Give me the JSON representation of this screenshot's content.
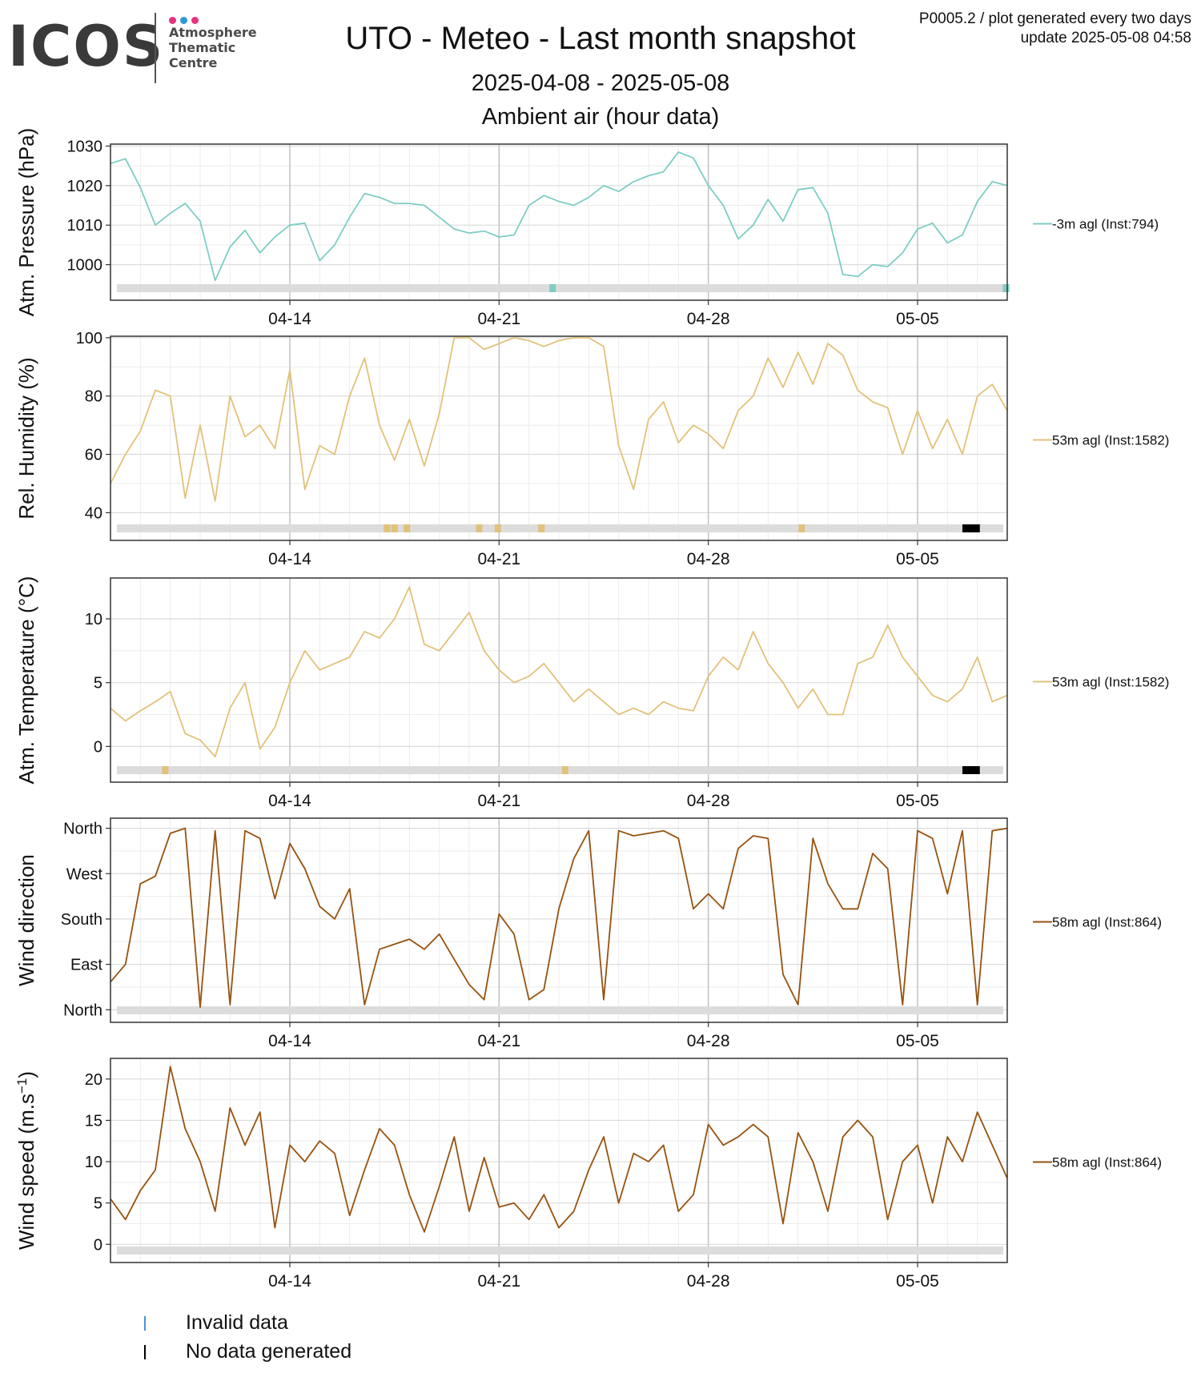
{
  "header": {
    "logo_text": "ICOS",
    "logo_sub": [
      "Atmosphere",
      "Thematic",
      "Centre"
    ],
    "logo_dot_colors": [
      "#e8327c",
      "#2d9ad6",
      "#e8327c"
    ],
    "title": "UTO - Meteo - Last month snapshot",
    "date_range": "2025-04-08 - 2025-05-08",
    "subtitle": "Ambient air (hour data)",
    "info_line1": "P0005.2 / plot generated every two days",
    "info_line2": "update  2025-05-08 04:58"
  },
  "footer_legend": [
    {
      "label": "Invalid data",
      "color": "#4a90d9"
    },
    {
      "label": "No data generated",
      "color": "#000000"
    }
  ],
  "chart_data": [
    {
      "type": "line",
      "ylabel": "Atm. Pressure (hPa)",
      "ylim": [
        991,
        1030.5
      ],
      "yticks": [
        1000,
        1010,
        1020,
        1030
      ],
      "ytick_labels": [
        "1000",
        "1010",
        "1020",
        "1030"
      ],
      "x_range": [
        "2025-04-08",
        "2025-05-08"
      ],
      "xticks": [
        "2025-04-14",
        "2025-04-21",
        "2025-04-28",
        "2025-05-05"
      ],
      "xtick_labels": [
        "04-14",
        "04-21",
        "04-28",
        "05-05"
      ],
      "grid": true,
      "series": [
        {
          "name": "-3m agl (Inst:794)",
          "color": "#7ecdc4",
          "x": [
            "2025-04-08",
            "2025-04-08T12:00",
            "2025-04-09",
            "2025-04-09T12:00",
            "2025-04-10",
            "2025-04-10T12:00",
            "2025-04-11",
            "2025-04-11T12:00",
            "2025-04-12",
            "2025-04-12T12:00",
            "2025-04-13",
            "2025-04-13T12:00",
            "2025-04-14",
            "2025-04-14T12:00",
            "2025-04-15",
            "2025-04-15T12:00",
            "2025-04-16",
            "2025-04-16T12:00",
            "2025-04-17",
            "2025-04-17T12:00",
            "2025-04-18",
            "2025-04-18T12:00",
            "2025-04-19",
            "2025-04-19T12:00",
            "2025-04-20",
            "2025-04-20T12:00",
            "2025-04-21",
            "2025-04-21T12:00",
            "2025-04-22",
            "2025-04-22T12:00",
            "2025-04-23",
            "2025-04-23T12:00",
            "2025-04-24",
            "2025-04-24T12:00",
            "2025-04-25",
            "2025-04-25T12:00",
            "2025-04-26",
            "2025-04-26T12:00",
            "2025-04-27",
            "2025-04-27T12:00",
            "2025-04-28",
            "2025-04-28T12:00",
            "2025-04-29",
            "2025-04-29T12:00",
            "2025-04-30",
            "2025-04-30T12:00",
            "2025-05-01",
            "2025-05-01T12:00",
            "2025-05-02",
            "2025-05-02T12:00",
            "2025-05-03",
            "2025-05-03T12:00",
            "2025-05-04",
            "2025-05-04T12:00",
            "2025-05-05",
            "2025-05-05T12:00",
            "2025-05-06",
            "2025-05-06T12:00",
            "2025-05-07",
            "2025-05-07T12:00",
            "2025-05-08"
          ],
          "values": [
            1025.6,
            1026.8,
            1019.5,
            1010.0,
            1013.0,
            1015.5,
            1011.0,
            996.0,
            1004.5,
            1008.7,
            1003.0,
            1007.0,
            1010.0,
            1010.5,
            1001.0,
            1005.0,
            1012.0,
            1018.0,
            1017.0,
            1015.5,
            1015.5,
            1015.0,
            1012.0,
            1009.0,
            1008.0,
            1008.5,
            1007.0,
            1007.5,
            1015.0,
            1017.5,
            1016.0,
            1015.0,
            1017.0,
            1020.0,
            1018.5,
            1021.0,
            1022.5,
            1023.5,
            1028.5,
            1027.0,
            1020.0,
            1015.0,
            1006.5,
            1010.0,
            1016.5,
            1011.0,
            1019.0,
            1019.5,
            1013.0,
            997.5,
            997.0,
            1000.0,
            999.5,
            1003.0,
            1009.0,
            1010.5,
            1005.5,
            1007.5,
            1016.0,
            1021.0,
            1020.0
          ]
        }
      ],
      "status_bar": {
        "invalid_color": "#7ecdc4",
        "invalid_at": [
          "2025-04-22T19:00",
          "2025-05-07T23:00"
        ]
      },
      "legend_position": "right"
    },
    {
      "type": "line",
      "ylabel": "Rel. Humidity (%)",
      "ylim": [
        30.5,
        100.5
      ],
      "yticks": [
        40,
        60,
        80,
        100
      ],
      "ytick_labels": [
        "40",
        "60",
        "80",
        "100"
      ],
      "x_range": [
        "2025-04-08",
        "2025-05-08"
      ],
      "xticks": [
        "2025-04-14",
        "2025-04-21",
        "2025-04-28",
        "2025-05-05"
      ],
      "xtick_labels": [
        "04-14",
        "04-21",
        "04-28",
        "05-05"
      ],
      "grid": true,
      "series": [
        {
          "name": "53m agl (Inst:1582)",
          "color": "#e0c27a",
          "x": [
            "2025-04-08",
            "2025-04-08T12:00",
            "2025-04-09",
            "2025-04-09T12:00",
            "2025-04-10",
            "2025-04-10T12:00",
            "2025-04-11",
            "2025-04-11T12:00",
            "2025-04-12",
            "2025-04-12T12:00",
            "2025-04-13",
            "2025-04-13T12:00",
            "2025-04-14",
            "2025-04-14T12:00",
            "2025-04-15",
            "2025-04-15T12:00",
            "2025-04-16",
            "2025-04-16T12:00",
            "2025-04-17",
            "2025-04-17T12:00",
            "2025-04-18",
            "2025-04-18T12:00",
            "2025-04-19",
            "2025-04-19T12:00",
            "2025-04-20",
            "2025-04-20T12:00",
            "2025-04-21",
            "2025-04-21T12:00",
            "2025-04-22",
            "2025-04-22T12:00",
            "2025-04-23",
            "2025-04-23T12:00",
            "2025-04-24",
            "2025-04-24T12:00",
            "2025-04-25",
            "2025-04-25T12:00",
            "2025-04-26",
            "2025-04-26T12:00",
            "2025-04-27",
            "2025-04-27T12:00",
            "2025-04-28",
            "2025-04-28T12:00",
            "2025-04-29",
            "2025-04-29T12:00",
            "2025-04-30",
            "2025-04-30T12:00",
            "2025-05-01",
            "2025-05-01T12:00",
            "2025-05-02",
            "2025-05-02T12:00",
            "2025-05-03",
            "2025-05-03T12:00",
            "2025-05-04",
            "2025-05-04T12:00",
            "2025-05-05",
            "2025-05-05T12:00",
            "2025-05-06",
            "2025-05-06T12:00",
            "2025-05-07",
            "2025-05-07T12:00",
            "2025-05-08"
          ],
          "values": [
            50,
            60,
            68,
            82,
            80,
            45,
            70,
            44,
            80,
            66,
            70,
            62,
            89,
            48,
            63,
            60,
            80,
            93,
            70,
            58,
            72,
            56,
            74,
            100,
            100,
            96,
            98,
            100,
            99,
            97,
            99,
            100,
            100,
            97,
            63,
            48,
            72,
            78,
            64,
            70,
            67,
            62,
            75,
            80,
            93,
            83,
            95,
            84,
            98,
            94,
            82,
            78,
            76,
            60,
            75,
            62,
            72,
            60,
            80,
            84,
            75
          ]
        }
      ],
      "status_bar": {
        "invalid_color": "#e0c27a",
        "invalid_at": [
          "2025-04-17T06:00",
          "2025-04-17T12:00",
          "2025-04-17T22:00",
          "2025-04-20T08:00",
          "2025-04-20T23:00",
          "2025-04-22T10:00",
          "2025-05-01T03:00"
        ],
        "nodata_color": "#000000",
        "nodata_ranges": [
          [
            "2025-05-06T12:00",
            "2025-05-07T02:00"
          ]
        ]
      },
      "legend_position": "right"
    },
    {
      "type": "line",
      "ylabel": "Atm. Temperature (°C)",
      "ylim": [
        -2.8,
        13.2
      ],
      "yticks": [
        0,
        5,
        10
      ],
      "ytick_labels": [
        "0",
        "5",
        "10"
      ],
      "x_range": [
        "2025-04-08",
        "2025-05-08"
      ],
      "xticks": [
        "2025-04-14",
        "2025-04-21",
        "2025-04-28",
        "2025-05-05"
      ],
      "xtick_labels": [
        "04-14",
        "04-21",
        "04-28",
        "05-05"
      ],
      "grid": true,
      "series": [
        {
          "name": "53m agl (Inst:1582)",
          "color": "#e0c27a",
          "x": [
            "2025-04-08",
            "2025-04-08T12:00",
            "2025-04-09",
            "2025-04-09T12:00",
            "2025-04-10",
            "2025-04-10T12:00",
            "2025-04-11",
            "2025-04-11T12:00",
            "2025-04-12",
            "2025-04-12T12:00",
            "2025-04-13",
            "2025-04-13T12:00",
            "2025-04-14",
            "2025-04-14T12:00",
            "2025-04-15",
            "2025-04-15T12:00",
            "2025-04-16",
            "2025-04-16T12:00",
            "2025-04-17",
            "2025-04-17T12:00",
            "2025-04-18",
            "2025-04-18T12:00",
            "2025-04-19",
            "2025-04-19T12:00",
            "2025-04-20",
            "2025-04-20T12:00",
            "2025-04-21",
            "2025-04-21T12:00",
            "2025-04-22",
            "2025-04-22T12:00",
            "2025-04-23",
            "2025-04-23T12:00",
            "2025-04-24",
            "2025-04-24T12:00",
            "2025-04-25",
            "2025-04-25T12:00",
            "2025-04-26",
            "2025-04-26T12:00",
            "2025-04-27",
            "2025-04-27T12:00",
            "2025-04-28",
            "2025-04-28T12:00",
            "2025-04-29",
            "2025-04-29T12:00",
            "2025-04-30",
            "2025-04-30T12:00",
            "2025-05-01",
            "2025-05-01T12:00",
            "2025-05-02",
            "2025-05-02T12:00",
            "2025-05-03",
            "2025-05-03T12:00",
            "2025-05-04",
            "2025-05-04T12:00",
            "2025-05-05",
            "2025-05-05T12:00",
            "2025-05-06",
            "2025-05-06T12:00",
            "2025-05-07",
            "2025-05-07T12:00",
            "2025-05-08"
          ],
          "values": [
            3.0,
            2.0,
            2.8,
            3.5,
            4.3,
            1.0,
            0.5,
            -0.8,
            3.0,
            5.0,
            -0.2,
            1.5,
            5.0,
            7.5,
            6.0,
            6.5,
            7.0,
            9.0,
            8.5,
            10.0,
            12.5,
            8.0,
            7.5,
            9.0,
            10.5,
            7.5,
            6.0,
            5.0,
            5.5,
            6.5,
            5.0,
            3.5,
            4.5,
            3.5,
            2.5,
            3.0,
            2.5,
            3.5,
            3.0,
            2.8,
            5.5,
            7.0,
            6.0,
            9.0,
            6.5,
            5.0,
            3.0,
            4.5,
            2.5,
            2.5,
            6.5,
            7.0,
            9.5,
            7.0,
            5.5,
            4.0,
            3.5,
            4.5,
            7.0,
            3.5,
            4.0
          ]
        }
      ],
      "status_bar": {
        "invalid_color": "#e0c27a",
        "invalid_at": [
          "2025-04-09T20:00",
          "2025-04-23T05:00"
        ],
        "nodata_color": "#000000",
        "nodata_ranges": [
          [
            "2025-05-06T12:00",
            "2025-05-07T02:00"
          ]
        ]
      },
      "legend_position": "right"
    },
    {
      "type": "line",
      "ylabel": "Wind direction",
      "ylim": [
        -25,
        380
      ],
      "yticks": [
        0,
        90,
        180,
        270,
        360
      ],
      "ytick_labels": [
        "North",
        "East",
        "South",
        "West",
        "North"
      ],
      "x_range": [
        "2025-04-08",
        "2025-05-08"
      ],
      "xticks": [
        "2025-04-14",
        "2025-04-21",
        "2025-04-28",
        "2025-05-05"
      ],
      "xtick_labels": [
        "04-14",
        "04-21",
        "04-28",
        "05-05"
      ],
      "grid": true,
      "series": [
        {
          "name": "58m agl (Inst:864)",
          "color": "#96520f",
          "x": [
            "2025-04-08",
            "2025-04-08T12:00",
            "2025-04-09",
            "2025-04-09T12:00",
            "2025-04-10",
            "2025-04-10T12:00",
            "2025-04-11",
            "2025-04-11T12:00",
            "2025-04-12",
            "2025-04-12T12:00",
            "2025-04-13",
            "2025-04-13T12:00",
            "2025-04-14",
            "2025-04-14T12:00",
            "2025-04-15",
            "2025-04-15T12:00",
            "2025-04-16",
            "2025-04-16T12:00",
            "2025-04-17",
            "2025-04-17T12:00",
            "2025-04-18",
            "2025-04-18T12:00",
            "2025-04-19",
            "2025-04-19T12:00",
            "2025-04-20",
            "2025-04-20T12:00",
            "2025-04-21",
            "2025-04-21T12:00",
            "2025-04-22",
            "2025-04-22T12:00",
            "2025-04-23",
            "2025-04-23T12:00",
            "2025-04-24",
            "2025-04-24T12:00",
            "2025-04-25",
            "2025-04-25T12:00",
            "2025-04-26",
            "2025-04-26T12:00",
            "2025-04-27",
            "2025-04-27T12:00",
            "2025-04-28",
            "2025-04-28T12:00",
            "2025-04-29",
            "2025-04-29T12:00",
            "2025-04-30",
            "2025-04-30T12:00",
            "2025-05-01",
            "2025-05-01T12:00",
            "2025-05-02",
            "2025-05-02T12:00",
            "2025-05-03",
            "2025-05-03T12:00",
            "2025-05-04",
            "2025-05-04T12:00",
            "2025-05-05",
            "2025-05-05T12:00",
            "2025-05-06",
            "2025-05-06T12:00",
            "2025-05-07",
            "2025-05-07T12:00",
            "2025-05-08"
          ],
          "values": [
            55,
            90,
            250,
            265,
            350,
            360,
            5,
            355,
            10,
            355,
            340,
            220,
            330,
            280,
            205,
            180,
            240,
            10,
            120,
            130,
            140,
            120,
            150,
            100,
            50,
            20,
            190,
            150,
            20,
            40,
            200,
            300,
            355,
            20,
            355,
            345,
            350,
            355,
            340,
            200,
            230,
            200,
            320,
            345,
            340,
            70,
            10,
            340,
            250,
            200,
            200,
            310,
            280,
            10,
            355,
            340,
            230,
            355,
            10,
            355,
            360
          ]
        }
      ],
      "status_bar": {},
      "legend_position": "right"
    },
    {
      "type": "line",
      "ylabel": "Wind speed (m.s",
      "ylabel_sup": "−1",
      "ylabel_end": ")",
      "ylim": [
        -2.2,
        22.5
      ],
      "yticks": [
        0,
        5,
        10,
        15,
        20
      ],
      "ytick_labels": [
        "0",
        "5",
        "10",
        "15",
        "20"
      ],
      "x_range": [
        "2025-04-08",
        "2025-05-08"
      ],
      "xticks": [
        "2025-04-14",
        "2025-04-21",
        "2025-04-28",
        "2025-05-05"
      ],
      "xtick_labels": [
        "04-14",
        "04-21",
        "04-28",
        "05-05"
      ],
      "grid": true,
      "series": [
        {
          "name": "58m agl (Inst:864)",
          "color": "#96520f",
          "x": [
            "2025-04-08",
            "2025-04-08T12:00",
            "2025-04-09",
            "2025-04-09T12:00",
            "2025-04-10",
            "2025-04-10T12:00",
            "2025-04-11",
            "2025-04-11T12:00",
            "2025-04-12",
            "2025-04-12T12:00",
            "2025-04-13",
            "2025-04-13T12:00",
            "2025-04-14",
            "2025-04-14T12:00",
            "2025-04-15",
            "2025-04-15T12:00",
            "2025-04-16",
            "2025-04-16T12:00",
            "2025-04-17",
            "2025-04-17T12:00",
            "2025-04-18",
            "2025-04-18T12:00",
            "2025-04-19",
            "2025-04-19T12:00",
            "2025-04-20",
            "2025-04-20T12:00",
            "2025-04-21",
            "2025-04-21T12:00",
            "2025-04-22",
            "2025-04-22T12:00",
            "2025-04-23",
            "2025-04-23T12:00",
            "2025-04-24",
            "2025-04-24T12:00",
            "2025-04-25",
            "2025-04-25T12:00",
            "2025-04-26",
            "2025-04-26T12:00",
            "2025-04-27",
            "2025-04-27T12:00",
            "2025-04-28",
            "2025-04-28T12:00",
            "2025-04-29",
            "2025-04-29T12:00",
            "2025-04-30",
            "2025-04-30T12:00",
            "2025-05-01",
            "2025-05-01T12:00",
            "2025-05-02",
            "2025-05-02T12:00",
            "2025-05-03",
            "2025-05-03T12:00",
            "2025-05-04",
            "2025-05-04T12:00",
            "2025-05-05",
            "2025-05-05T12:00",
            "2025-05-06",
            "2025-05-06T12:00",
            "2025-05-07",
            "2025-05-07T12:00",
            "2025-05-08"
          ],
          "values": [
            5.5,
            3.0,
            6.5,
            9.0,
            21.5,
            14.0,
            10.0,
            4.0,
            16.5,
            12.0,
            16.0,
            2.0,
            12.0,
            10.0,
            12.5,
            11.0,
            3.5,
            9.0,
            14.0,
            12.0,
            6.0,
            1.5,
            7.0,
            13.0,
            4.0,
            10.5,
            4.5,
            5.0,
            3.0,
            6.0,
            2.0,
            4.0,
            9.0,
            13.0,
            5.0,
            11.0,
            10.0,
            12.0,
            4.0,
            6.0,
            14.5,
            12.0,
            13.0,
            14.5,
            13.0,
            2.5,
            13.5,
            10.0,
            4.0,
            13.0,
            15.0,
            13.0,
            3.0,
            10.0,
            12.0,
            5.0,
            13.0,
            10.0,
            16.0,
            12.0,
            8.0
          ]
        }
      ],
      "status_bar": {},
      "legend_position": "right"
    }
  ]
}
